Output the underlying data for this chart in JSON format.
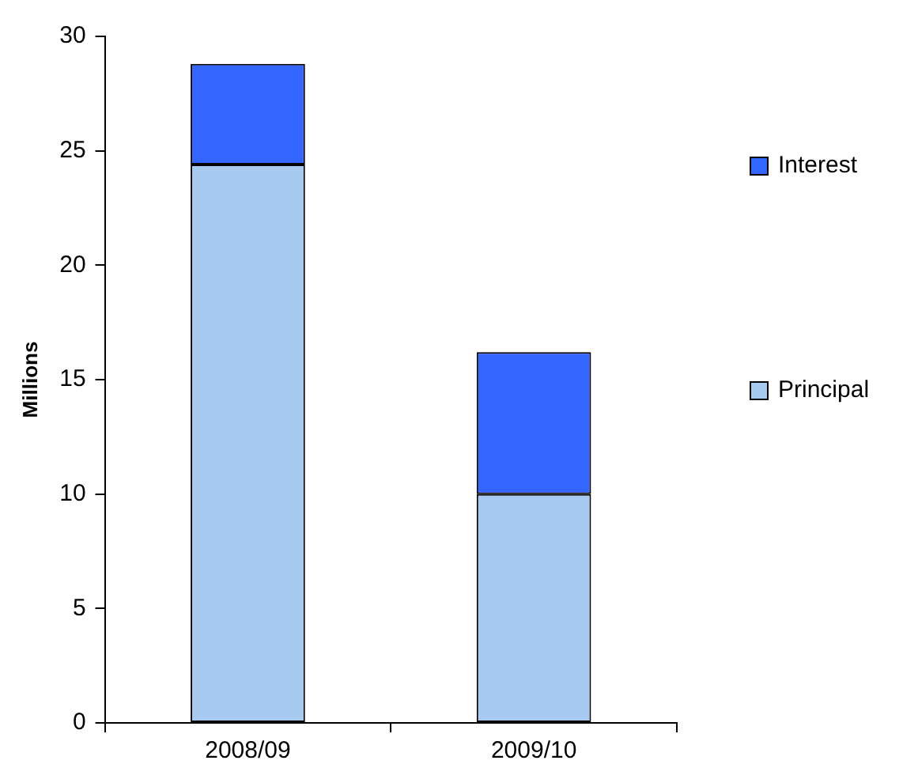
{
  "chart_data": {
    "type": "bar",
    "stacked": true,
    "ylabel": "Millions",
    "categories": [
      "2008/09",
      "2009/10"
    ],
    "series": [
      {
        "name": "Principal",
        "color": "#a6caf0",
        "values": [
          24.4,
          10.0
        ]
      },
      {
        "name": "Interest",
        "color": "#3366ff",
        "values": [
          4.4,
          6.2
        ]
      }
    ],
    "ylim": [
      0,
      30
    ],
    "yticks": [
      0,
      5,
      10,
      15,
      20,
      25,
      30
    ],
    "grid": false,
    "legend": "right"
  }
}
